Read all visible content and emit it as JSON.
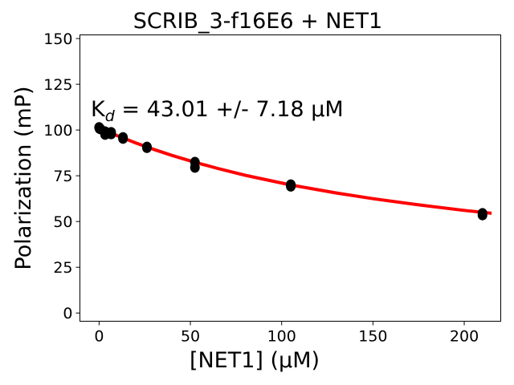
{
  "chart_data": {
    "type": "scatter",
    "title": "SCRIB_3-f16E6 + NET1",
    "xlabel": "[NET1] (μM)",
    "ylabel": "Polarization (mP)",
    "xlim": [
      -10.5,
      220
    ],
    "ylim": [
      -4.5,
      152
    ],
    "xticks": [
      0,
      50,
      100,
      150,
      200
    ],
    "yticks": [
      0,
      25,
      50,
      75,
      100,
      125,
      150
    ],
    "grid": false,
    "annotation": {
      "prefix": "K",
      "sub": "d",
      "text": " = 43.01 +/- 7.18 μM"
    },
    "points": [
      {
        "x": 0,
        "y": 101.5
      },
      {
        "x": 0.2,
        "y": 100.8
      },
      {
        "x": 0.8,
        "y": 100.5
      },
      {
        "x": 3.3,
        "y": 99.2
      },
      {
        "x": 3.3,
        "y": 97.5
      },
      {
        "x": 6.6,
        "y": 98.8
      },
      {
        "x": 6.6,
        "y": 97.8
      },
      {
        "x": 13.1,
        "y": 96.0
      },
      {
        "x": 13.1,
        "y": 95.3
      },
      {
        "x": 26.2,
        "y": 90.8
      },
      {
        "x": 26.2,
        "y": 90.3
      },
      {
        "x": 52.5,
        "y": 82.5
      },
      {
        "x": 52.5,
        "y": 79.5
      },
      {
        "x": 105,
        "y": 70.2
      },
      {
        "x": 105,
        "y": 69.2
      },
      {
        "x": 210,
        "y": 54.5
      },
      {
        "x": 210,
        "y": 53.5
      }
    ],
    "fit": {
      "color": "#ff0000",
      "x": [
        0,
        5,
        10,
        20,
        30,
        40,
        52.5,
        65,
        80,
        105,
        130,
        150,
        175,
        200,
        215
      ],
      "y": [
        101,
        98.9,
        96.9,
        93.0,
        89.4,
        86.1,
        82.4,
        79.0,
        75.3,
        70.0,
        65.6,
        62.5,
        59.1,
        56.1,
        54.5
      ]
    },
    "point_color": "#000000"
  }
}
